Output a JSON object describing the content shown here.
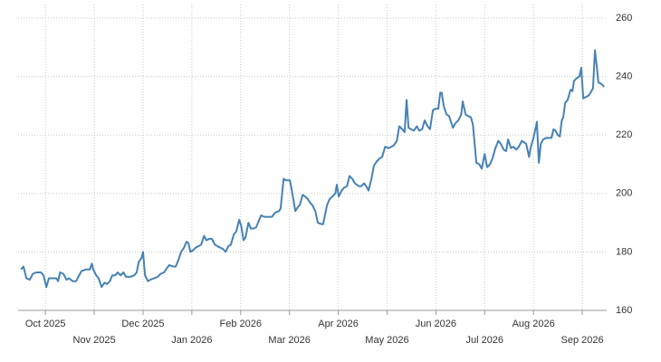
{
  "chart_data": {
    "type": "line",
    "x": [
      -0.5,
      -0.45,
      -0.39,
      -0.32,
      -0.26,
      -0.19,
      -0.09,
      -0.04,
      0.02,
      0.07,
      0.15,
      0.22,
      0.26,
      0.3,
      0.37,
      0.43,
      0.48,
      0.56,
      0.63,
      0.69,
      0.74,
      0.83,
      0.91,
      0.95,
      0.98,
      1.04,
      1.09,
      1.15,
      1.21,
      1.26,
      1.32,
      1.37,
      1.43,
      1.48,
      1.54,
      1.6,
      1.65,
      1.74,
      1.82,
      1.87,
      1.91,
      1.97,
      2.0,
      2.04,
      2.1,
      2.15,
      2.23,
      2.3,
      2.36,
      2.43,
      2.49,
      2.54,
      2.62,
      2.67,
      2.73,
      2.78,
      2.84,
      2.89,
      2.93,
      2.97,
      3.02,
      3.08,
      3.14,
      3.19,
      3.25,
      3.3,
      3.36,
      3.41,
      3.47,
      3.52,
      3.58,
      3.64,
      3.69,
      3.75,
      3.8,
      3.86,
      3.91,
      3.97,
      4.01,
      4.06,
      4.1,
      4.16,
      4.21,
      4.27,
      4.32,
      4.38,
      4.42,
      4.49,
      4.56,
      4.64,
      4.71,
      4.79,
      4.82,
      4.88,
      4.93,
      5.01,
      5.06,
      5.12,
      5.18,
      5.21,
      5.27,
      5.32,
      5.38,
      5.44,
      5.47,
      5.53,
      5.58,
      5.66,
      5.69,
      5.77,
      5.82,
      5.88,
      5.94,
      5.97,
      6.01,
      6.07,
      6.12,
      6.18,
      6.23,
      6.29,
      6.34,
      6.42,
      6.47,
      6.53,
      6.59,
      6.62,
      6.68,
      6.73,
      6.79,
      6.85,
      6.9,
      6.96,
      7.03,
      7.09,
      7.14,
      7.2,
      7.25,
      7.31,
      7.36,
      7.4,
      7.44,
      7.49,
      7.55,
      7.61,
      7.66,
      7.72,
      7.77,
      7.83,
      7.88,
      7.94,
      7.99,
      8.05,
      8.09,
      8.12,
      8.16,
      8.22,
      8.27,
      8.31,
      8.35,
      8.4,
      8.46,
      8.52,
      8.55,
      8.61,
      8.66,
      8.72,
      8.76,
      8.83,
      8.89,
      8.94,
      9.0,
      9.05,
      9.11,
      9.16,
      9.22,
      9.28,
      9.33,
      9.39,
      9.44,
      9.48,
      9.54,
      9.59,
      9.65,
      9.7,
      9.76,
      9.81,
      9.85,
      9.91,
      9.94,
      10.0,
      10.04,
      10.07,
      10.11,
      10.15,
      10.2,
      10.26,
      10.32,
      10.37,
      10.41,
      10.45,
      10.5,
      10.54,
      10.58,
      10.61,
      10.65,
      10.7,
      10.76,
      10.8,
      10.83,
      10.89,
      10.94,
      10.98,
      11.02,
      11.07,
      11.13,
      11.17,
      11.22,
      11.26,
      11.3,
      11.33,
      11.39,
      11.45
    ],
    "values": [
      174,
      175,
      171,
      170.5,
      172.5,
      173,
      173,
      172,
      168,
      171,
      171,
      171,
      170,
      173,
      172.5,
      170.5,
      171,
      170,
      170,
      172,
      173.5,
      174,
      174,
      176,
      174,
      172,
      171,
      168,
      169.5,
      169,
      170,
      172,
      172,
      173,
      172,
      173,
      171.5,
      171.5,
      172,
      173,
      176.5,
      178,
      180,
      172,
      170,
      170.5,
      171,
      171.5,
      172.5,
      173,
      174.5,
      175.5,
      175,
      175,
      177.5,
      180,
      181.5,
      183.5,
      183,
      180,
      180.5,
      181.5,
      182,
      182.5,
      185.5,
      184,
      184.5,
      184.5,
      182.5,
      182,
      181.5,
      181,
      180,
      182,
      182.5,
      186,
      187,
      191,
      189,
      184,
      185,
      190,
      188,
      188,
      188.5,
      191,
      192.5,
      192,
      192,
      192,
      193.5,
      194,
      195,
      205,
      204.5,
      204.5,
      200,
      194,
      195.5,
      196,
      199.5,
      199,
      198,
      196.5,
      196,
      194,
      190,
      189.5,
      189.5,
      196,
      198,
      199,
      200,
      203,
      199,
      201,
      202,
      202.5,
      206,
      205,
      203.5,
      202.5,
      202.5,
      203.5,
      202,
      201,
      205,
      209.5,
      211,
      212,
      212.5,
      216,
      215.5,
      216,
      216.5,
      218,
      223,
      222,
      221,
      232,
      222.5,
      222,
      221.5,
      223,
      221.5,
      222,
      225,
      223,
      222,
      228.5,
      229,
      229,
      234.5,
      234.5,
      230,
      227,
      226.5,
      224.5,
      222.5,
      224,
      225,
      227,
      231.5,
      227,
      226.5,
      226,
      223.5,
      210.5,
      210,
      208.5,
      213.5,
      209,
      210,
      212,
      215.5,
      218,
      217,
      215,
      214.5,
      218.5,
      215.5,
      216,
      215,
      216,
      218,
      217.5,
      217,
      212.5,
      215.5,
      219,
      222,
      224.5,
      210.5,
      217,
      218.5,
      219,
      219,
      219,
      222,
      221.5,
      220,
      219.5,
      225,
      226,
      231,
      232,
      235.5,
      235,
      238.5,
      239.5,
      240,
      243,
      232.5,
      233,
      233.5,
      234.5,
      236,
      249,
      243,
      238,
      237.5,
      236.5
    ],
    "color": "#4682b4",
    "xlim": [
      -0.56,
      11.5
    ],
    "xticks": [
      {
        "value": 0,
        "label": "Oct 2025"
      },
      {
        "value": 1,
        "label": "Nov 2025"
      },
      {
        "value": 2,
        "label": "Dec 2025"
      },
      {
        "value": 3,
        "label": "Jan 2026"
      },
      {
        "value": 4,
        "label": "Feb 2026"
      },
      {
        "value": 5,
        "label": "Mar 2026"
      },
      {
        "value": 6,
        "label": "Apr 2026"
      },
      {
        "value": 7,
        "label": "May 2026"
      },
      {
        "value": 8,
        "label": "Jun 2026"
      },
      {
        "value": 9,
        "label": "Jul 2026"
      },
      {
        "value": 10,
        "label": "Aug 2026"
      },
      {
        "value": 11,
        "label": "Sep 2026"
      }
    ],
    "ylim": [
      160,
      260
    ],
    "yticks": [
      160,
      180,
      200,
      220,
      240,
      260
    ],
    "grid": true
  }
}
